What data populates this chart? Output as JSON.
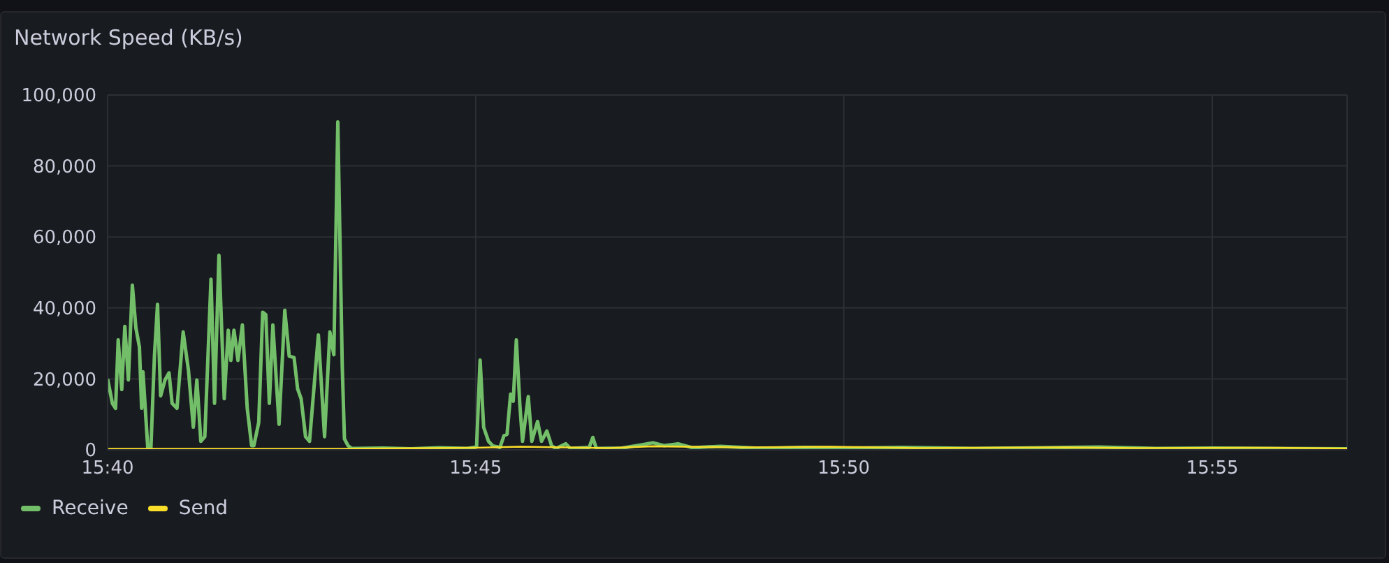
{
  "chart_data": {
    "type": "line",
    "title": "Network Speed (KB/s)",
    "xlim": [
      15.6667,
      15.9472
    ],
    "xticks": [
      {
        "value": 15.6667,
        "label": "15:40"
      },
      {
        "value": 15.75,
        "label": "15:45"
      },
      {
        "value": 15.8333,
        "label": "15:50"
      },
      {
        "value": 15.9167,
        "label": "15:55"
      }
    ],
    "ylim": [
      0,
      100000
    ],
    "yticks": [
      {
        "value": 0,
        "label": "0"
      },
      {
        "value": 20000,
        "label": "20,000"
      },
      {
        "value": 40000,
        "label": "40,000"
      },
      {
        "value": 60000,
        "label": "60,000"
      },
      {
        "value": 80000,
        "label": "80,000"
      },
      {
        "value": 100000,
        "label": "100,000"
      }
    ],
    "grid": true,
    "legend": "bottom left",
    "marker": "none",
    "line_style": "solid",
    "series": [
      {
        "name": "Receive",
        "color": "#73bf69",
        "x": [
          15.6667,
          15.6678,
          15.6685,
          15.6691,
          15.6699,
          15.6706,
          15.6714,
          15.6723,
          15.6731,
          15.6739,
          15.6744,
          15.6747,
          15.6758,
          15.6765,
          15.6773,
          15.678,
          15.6787,
          15.6797,
          15.6806,
          15.6813,
          15.6824,
          15.6838,
          15.685,
          15.6861,
          15.6869,
          15.6878,
          15.6887,
          15.6901,
          15.6909,
          15.6919,
          15.6931,
          15.694,
          15.6946,
          15.6953,
          15.6962,
          15.6972,
          15.6983,
          15.6993,
          15.6998,
          15.7009,
          15.7018,
          15.7025,
          15.7033,
          15.7041,
          15.7055,
          15.7068,
          15.7078,
          15.7089,
          15.7097,
          15.7105,
          15.7115,
          15.7124,
          15.7144,
          15.7158,
          15.717,
          15.7179,
          15.7188,
          15.7198,
          15.7203,
          15.7211,
          15.7219,
          15.729,
          15.7354,
          15.7417,
          15.7481,
          15.7502,
          15.751,
          15.7518,
          15.7529,
          15.7539,
          15.7555,
          15.7564,
          15.7571,
          15.7579,
          15.7585,
          15.7592,
          15.76,
          15.7606,
          15.7619,
          15.7627,
          15.764,
          15.7649,
          15.7661,
          15.7672,
          15.7682,
          15.7704,
          15.7714,
          15.7757,
          15.7765,
          15.7773,
          15.7831,
          15.7879,
          15.7901,
          15.7926,
          15.7958,
          15.799,
          15.8054,
          15.8149,
          15.8244,
          15.834,
          15.8467,
          15.8626,
          15.8785,
          15.8912,
          15.904,
          15.9167,
          15.9294,
          15.9472
        ],
        "values": [
          20000,
          13000,
          11700,
          31000,
          17000,
          34800,
          19700,
          46400,
          34400,
          29000,
          11700,
          22000,
          400,
          400,
          26400,
          41000,
          15200,
          19700,
          21700,
          13100,
          11700,
          33200,
          22400,
          6400,
          19700,
          2400,
          3700,
          48100,
          13100,
          54800,
          14400,
          33700,
          25200,
          33700,
          25200,
          35200,
          11700,
          1200,
          1200,
          7700,
          38800,
          38100,
          13100,
          35200,
          7200,
          39300,
          26400,
          26000,
          17200,
          14400,
          3700,
          2400,
          32400,
          3700,
          33200,
          26800,
          92400,
          23700,
          3100,
          1200,
          400,
          500,
          300,
          600,
          400,
          800,
          25300,
          6400,
          2400,
          1100,
          700,
          4000,
          4400,
          15700,
          13700,
          31000,
          12600,
          2400,
          15000,
          2400,
          8000,
          2400,
          5300,
          1100,
          400,
          1700,
          400,
          700,
          3500,
          400,
          500,
          1500,
          2000,
          1200,
          1700,
          600,
          1000,
          400,
          700,
          500,
          700,
          400,
          600,
          800,
          400,
          500,
          400,
          300
        ]
      },
      {
        "name": "Send",
        "color": "#fade2a",
        "x": [
          15.6667,
          15.72,
          15.75,
          15.76,
          15.78,
          15.79,
          15.81,
          15.83,
          15.85,
          15.88,
          15.9,
          15.93,
          15.9472
        ],
        "values": [
          300,
          300,
          600,
          900,
          500,
          1000,
          700,
          900,
          500,
          700,
          500,
          600,
          400
        ]
      }
    ]
  }
}
